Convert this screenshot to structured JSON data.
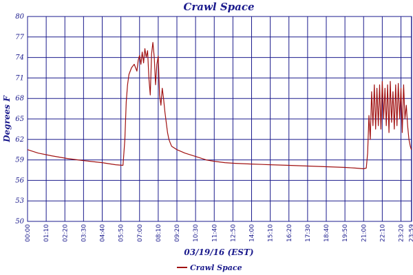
{
  "chart_data": {
    "type": "line",
    "title": "Crawl Space",
    "xlabel": "03/19/16 (EST)",
    "ylabel": "Degrees F",
    "ylim": [
      50,
      80
    ],
    "yticks": [
      50,
      53,
      56,
      59,
      62,
      65,
      68,
      71,
      74,
      77,
      80
    ],
    "xlim": [
      "00:00",
      "24:00"
    ],
    "xtick_labels": [
      "00:00",
      "01:10",
      "02:20",
      "03:30",
      "04:40",
      "05:50",
      "07:00",
      "08:10",
      "09:20",
      "10:30",
      "11:40",
      "12:50",
      "14:00",
      "15:10",
      "16:20",
      "17:30",
      "18:40",
      "19:50",
      "21:00",
      "22:10",
      "23:20",
      "23:59"
    ],
    "grid": true,
    "legend": "bottom-left",
    "series": [
      {
        "name": "Crawl Space",
        "color": "#a01010",
        "x": [
          "00:00",
          "00:40",
          "01:30",
          "02:30",
          "03:30",
          "04:40",
          "05:30",
          "05:58",
          "06:05",
          "06:10",
          "06:15",
          "06:20",
          "06:30",
          "06:40",
          "06:50",
          "06:55",
          "07:00",
          "07:05",
          "07:10",
          "07:15",
          "07:20",
          "07:25",
          "07:30",
          "07:35",
          "07:40",
          "07:45",
          "07:50",
          "07:55",
          "08:00",
          "08:05",
          "08:10",
          "08:15",
          "08:20",
          "08:25",
          "08:30",
          "08:35",
          "08:40",
          "08:45",
          "08:50",
          "08:55",
          "09:00",
          "09:20",
          "09:50",
          "10:30",
          "11:10",
          "11:40",
          "12:20",
          "13:00",
          "14:00",
          "15:10",
          "16:20",
          "17:30",
          "18:40",
          "19:50",
          "20:30",
          "21:00",
          "21:10",
          "21:15",
          "21:20",
          "21:25",
          "21:30",
          "21:35",
          "21:40",
          "21:45",
          "21:50",
          "21:55",
          "22:00",
          "22:05",
          "22:10",
          "22:15",
          "22:20",
          "22:25",
          "22:30",
          "22:35",
          "22:40",
          "22:45",
          "22:50",
          "22:55",
          "23:00",
          "23:05",
          "23:10",
          "23:15",
          "23:20",
          "23:25",
          "23:30",
          "23:35",
          "23:40",
          "23:45",
          "23:50",
          "23:55",
          "23:59"
        ],
        "y": [
          60.5,
          60.0,
          59.6,
          59.2,
          58.9,
          58.6,
          58.3,
          58.2,
          62.0,
          67.5,
          70.0,
          71.5,
          72.5,
          73.0,
          72.0,
          73.6,
          74.3,
          73.0,
          74.8,
          73.2,
          75.3,
          74.0,
          75.0,
          71.0,
          68.5,
          74.5,
          76.2,
          74.0,
          70.0,
          73.0,
          74.2,
          68.5,
          67.0,
          69.5,
          68.0,
          66.0,
          64.5,
          63.0,
          62.0,
          61.5,
          61.0,
          60.5,
          60.0,
          59.5,
          59.0,
          58.8,
          58.6,
          58.5,
          58.4,
          58.3,
          58.2,
          58.1,
          58.0,
          57.9,
          57.8,
          57.7,
          57.8,
          60.0,
          65.5,
          62.0,
          69.0,
          64.0,
          70.0,
          63.5,
          69.5,
          64.0,
          70.0,
          63.5,
          70.5,
          65.0,
          69.5,
          64.0,
          70.0,
          63.0,
          70.5,
          64.5,
          69.0,
          63.5,
          70.0,
          64.0,
          70.2,
          65.0,
          69.5,
          63.0,
          70.0,
          65.0,
          67.0,
          64.0,
          62.0,
          61.0,
          60.5
        ]
      }
    ]
  }
}
